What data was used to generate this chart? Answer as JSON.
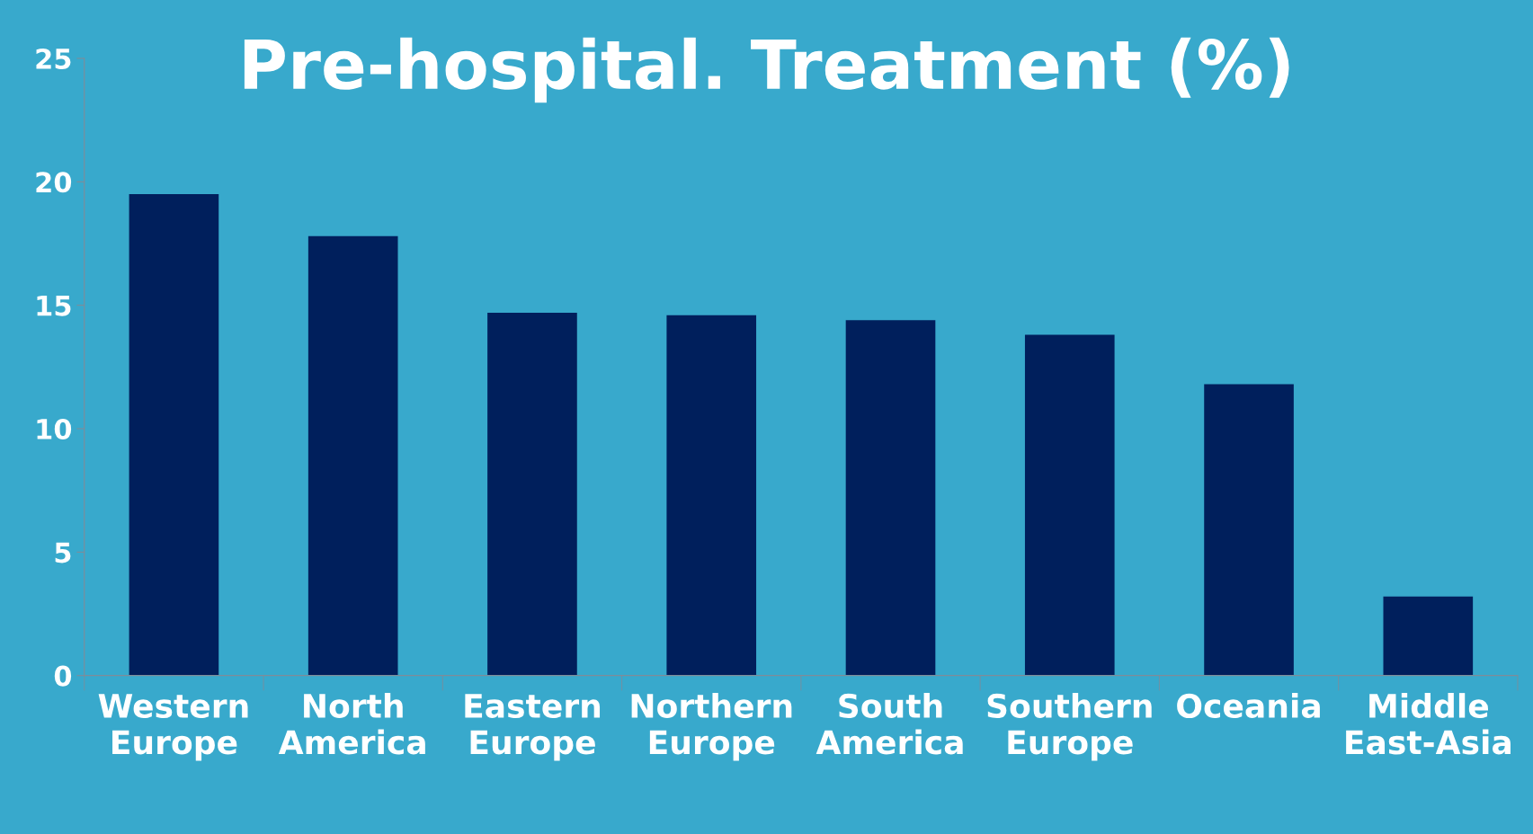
{
  "chart_data": {
    "type": "bar",
    "title": "Pre-hospital. Treatment (%)",
    "categories": [
      "Western\nEurope",
      "North\nAmerica",
      "Eastern\nEurope",
      "Northern\nEurope",
      "South\nAmerica",
      "Southern\nEurope",
      "Oceania",
      "Middle\nEast-Asia"
    ],
    "values": [
      19.5,
      17.8,
      14.7,
      14.6,
      14.4,
      13.8,
      11.8,
      3.2
    ],
    "color": "#001f5c",
    "ylim": [
      0,
      25
    ],
    "yticks": [
      0,
      5,
      10,
      15,
      20,
      25
    ],
    "grid": false,
    "legend": false
  }
}
